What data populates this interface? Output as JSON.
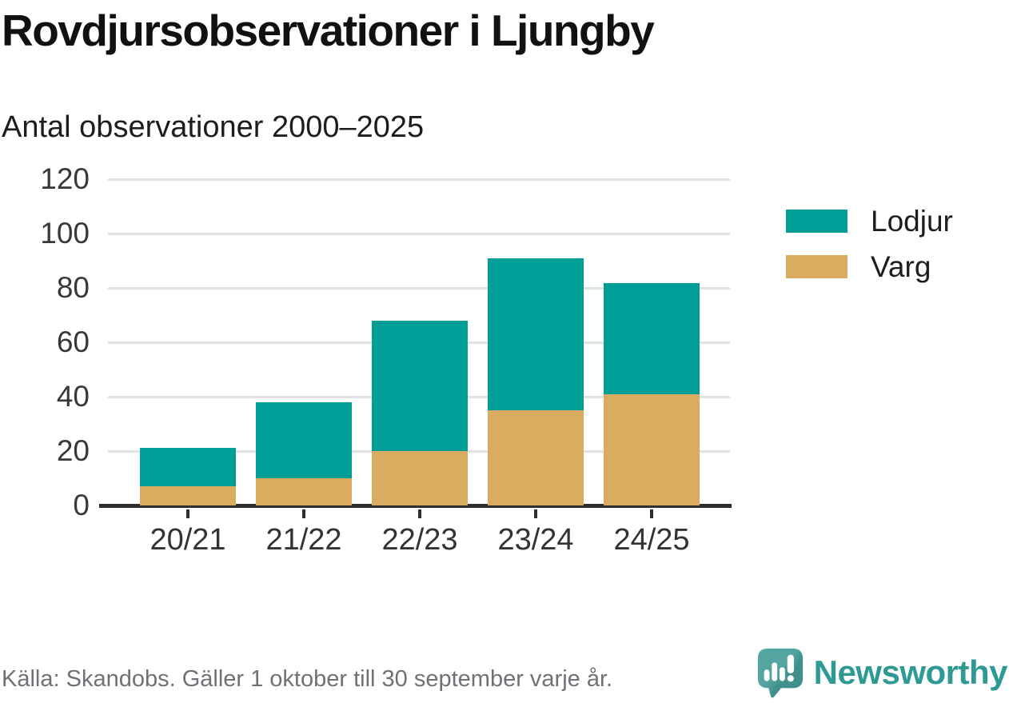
{
  "chart_data": {
    "type": "bar",
    "stacked": true,
    "title": "Rovdjursobservationer i Ljungby",
    "subtitle": "Antal observationer 2000–2025",
    "categories": [
      "20/21",
      "21/22",
      "22/23",
      "23/24",
      "24/25"
    ],
    "series": [
      {
        "name": "Varg",
        "color": "#d9ac5f",
        "values": [
          7,
          10,
          20,
          35,
          41
        ]
      },
      {
        "name": "Lodjur",
        "color": "#009e96",
        "values": [
          14,
          28,
          48,
          56,
          41
        ]
      }
    ],
    "totals": [
      21,
      38,
      68,
      91,
      82
    ],
    "xlabel": "",
    "ylabel": "",
    "ylim": [
      0,
      120
    ],
    "yticks": [
      0,
      20,
      40,
      60,
      80,
      100,
      120
    ],
    "grid": "horizontal",
    "grid_color": "#e2e2e2",
    "axis_color": "#2e2e2e",
    "legend": {
      "position": "right",
      "items": [
        {
          "label": "Lodjur",
          "color": "#009e96"
        },
        {
          "label": "Varg",
          "color": "#d9ac5f"
        }
      ]
    }
  },
  "footer": {
    "source": "Källa: Skandobs. Gäller 1 oktober till 30 september varje år.",
    "brand": "Newsworthy",
    "brand_color": "#2f9a94"
  }
}
